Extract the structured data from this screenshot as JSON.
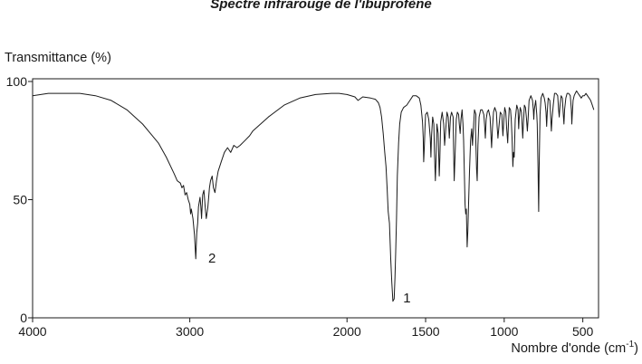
{
  "chart_data": {
    "type": "line",
    "title": "Spectre infrarouge de l'ibuprofène",
    "ylabel": "Transmittance (%)",
    "xlabel_text": "Nombre d'onde (cm",
    "xlabel_sup": "-1",
    "xlabel_close": ")",
    "xlim": [
      4000,
      400
    ],
    "ylim": [
      0,
      100
    ],
    "x_axis_reversed": true,
    "grid": false,
    "x_ticks": [
      4000,
      3000,
      2000,
      1500,
      1000,
      500
    ],
    "x_tick_labels": [
      "4000",
      "3000",
      "2000",
      "1500",
      "1000",
      "500"
    ],
    "y_ticks": [
      0,
      50,
      100
    ],
    "y_tick_labels": [
      "0",
      "50",
      "100"
    ],
    "annotations": [
      {
        "text": "1",
        "x": 1700,
        "y": 8
      },
      {
        "text": "2",
        "x": 2940,
        "y": 25
      }
    ],
    "series": [
      {
        "color": "#1a1a1a",
        "points": [
          [
            4000,
            94
          ],
          [
            3900,
            95
          ],
          [
            3800,
            95
          ],
          [
            3700,
            95
          ],
          [
            3600,
            94
          ],
          [
            3500,
            92
          ],
          [
            3400,
            88
          ],
          [
            3300,
            82
          ],
          [
            3250,
            78
          ],
          [
            3200,
            74
          ],
          [
            3150,
            68
          ],
          [
            3100,
            61
          ],
          [
            3080,
            58
          ],
          [
            3060,
            57
          ],
          [
            3050,
            55
          ],
          [
            3040,
            56
          ],
          [
            3030,
            52
          ],
          [
            3020,
            53
          ],
          [
            3010,
            50
          ],
          [
            3000,
            48
          ],
          [
            2995,
            44
          ],
          [
            2990,
            46
          ],
          [
            2980,
            42
          ],
          [
            2970,
            35
          ],
          [
            2962,
            25
          ],
          [
            2956,
            36
          ],
          [
            2950,
            40
          ],
          [
            2945,
            47
          ],
          [
            2935,
            51
          ],
          [
            2930,
            47
          ],
          [
            2925,
            42
          ],
          [
            2918,
            52
          ],
          [
            2910,
            54
          ],
          [
            2900,
            45
          ],
          [
            2895,
            42
          ],
          [
            2885,
            47
          ],
          [
            2875,
            55
          ],
          [
            2868,
            58
          ],
          [
            2858,
            60
          ],
          [
            2850,
            55
          ],
          [
            2840,
            53
          ],
          [
            2830,
            58
          ],
          [
            2820,
            62
          ],
          [
            2800,
            66
          ],
          [
            2780,
            70
          ],
          [
            2760,
            72
          ],
          [
            2740,
            70
          ],
          [
            2720,
            73
          ],
          [
            2700,
            72
          ],
          [
            2680,
            73
          ],
          [
            2650,
            75
          ],
          [
            2620,
            77
          ],
          [
            2600,
            79
          ],
          [
            2500,
            85
          ],
          [
            2400,
            90
          ],
          [
            2300,
            93
          ],
          [
            2200,
            94.5
          ],
          [
            2100,
            95
          ],
          [
            2050,
            95
          ],
          [
            2000,
            94.5
          ],
          [
            1950,
            93.5
          ],
          [
            1930,
            92
          ],
          [
            1900,
            93.5
          ],
          [
            1850,
            93
          ],
          [
            1820,
            92.5
          ],
          [
            1800,
            91
          ],
          [
            1790,
            89
          ],
          [
            1780,
            85
          ],
          [
            1770,
            78
          ],
          [
            1760,
            70
          ],
          [
            1752,
            64
          ],
          [
            1745,
            55
          ],
          [
            1738,
            45
          ],
          [
            1730,
            40
          ],
          [
            1722,
            25
          ],
          [
            1715,
            15
          ],
          [
            1708,
            7
          ],
          [
            1700,
            8
          ],
          [
            1695,
            17
          ],
          [
            1690,
            28
          ],
          [
            1685,
            42
          ],
          [
            1680,
            60
          ],
          [
            1672,
            74
          ],
          [
            1665,
            82
          ],
          [
            1655,
            87
          ],
          [
            1640,
            89
          ],
          [
            1620,
            90
          ],
          [
            1600,
            92
          ],
          [
            1580,
            94
          ],
          [
            1560,
            94
          ],
          [
            1540,
            93
          ],
          [
            1530,
            90
          ],
          [
            1520,
            83
          ],
          [
            1515,
            76
          ],
          [
            1512,
            66
          ],
          [
            1508,
            72
          ],
          [
            1504,
            80
          ],
          [
            1500,
            86
          ],
          [
            1490,
            87
          ],
          [
            1480,
            84
          ],
          [
            1470,
            76
          ],
          [
            1466,
            68
          ],
          [
            1462,
            77
          ],
          [
            1455,
            85
          ],
          [
            1448,
            82
          ],
          [
            1444,
            70
          ],
          [
            1438,
            58
          ],
          [
            1432,
            70
          ],
          [
            1428,
            82
          ],
          [
            1420,
            78
          ],
          [
            1413,
            60
          ],
          [
            1409,
            68
          ],
          [
            1404,
            83
          ],
          [
            1395,
            87
          ],
          [
            1385,
            82
          ],
          [
            1379,
            73
          ],
          [
            1372,
            80
          ],
          [
            1364,
            87
          ],
          [
            1356,
            85
          ],
          [
            1349,
            76
          ],
          [
            1342,
            85
          ],
          [
            1335,
            87
          ],
          [
            1325,
            85
          ],
          [
            1322,
            72
          ],
          [
            1318,
            58
          ],
          [
            1313,
            68
          ],
          [
            1305,
            84
          ],
          [
            1298,
            87
          ],
          [
            1290,
            86
          ],
          [
            1286,
            82
          ],
          [
            1280,
            78
          ],
          [
            1275,
            84
          ],
          [
            1268,
            88
          ],
          [
            1262,
            82
          ],
          [
            1258,
            75
          ],
          [
            1253,
            60
          ],
          [
            1249,
            48
          ],
          [
            1245,
            44
          ],
          [
            1241,
            46
          ],
          [
            1236,
            30
          ],
          [
            1231,
            37
          ],
          [
            1226,
            50
          ],
          [
            1221,
            62
          ],
          [
            1214,
            75
          ],
          [
            1207,
            80
          ],
          [
            1202,
            73
          ],
          [
            1196,
            80
          ],
          [
            1189,
            88
          ],
          [
            1180,
            86
          ],
          [
            1183,
            80
          ],
          [
            1176,
            63
          ],
          [
            1172,
            58
          ],
          [
            1167,
            73
          ],
          [
            1160,
            85
          ],
          [
            1150,
            88
          ],
          [
            1140,
            88
          ],
          [
            1130,
            86
          ],
          [
            1125,
            82
          ],
          [
            1120,
            76
          ],
          [
            1115,
            84
          ],
          [
            1108,
            87
          ],
          [
            1100,
            88
          ],
          [
            1090,
            85
          ],
          [
            1085,
            78
          ],
          [
            1080,
            72
          ],
          [
            1075,
            80
          ],
          [
            1068,
            87
          ],
          [
            1060,
            89
          ],
          [
            1050,
            87
          ],
          [
            1045,
            81
          ],
          [
            1040,
            76
          ],
          [
            1035,
            80
          ],
          [
            1025,
            87
          ],
          [
            1015,
            86
          ],
          [
            1012,
            81
          ],
          [
            1008,
            77
          ],
          [
            1003,
            83
          ],
          [
            997,
            89
          ],
          [
            990,
            87
          ],
          [
            985,
            81
          ],
          [
            978,
            74
          ],
          [
            973,
            82
          ],
          [
            968,
            89
          ],
          [
            960,
            88
          ],
          [
            955,
            84
          ],
          [
            950,
            76
          ],
          [
            945,
            64
          ],
          [
            941,
            70
          ],
          [
            936,
            68
          ],
          [
            930,
            84
          ],
          [
            920,
            90
          ],
          [
            912,
            88
          ],
          [
            908,
            80
          ],
          [
            905,
            84
          ],
          [
            898,
            89
          ],
          [
            890,
            87
          ],
          [
            882,
            76
          ],
          [
            878,
            82
          ],
          [
            872,
            90
          ],
          [
            865,
            89
          ],
          [
            858,
            84
          ],
          [
            853,
            79
          ],
          [
            848,
            84
          ],
          [
            842,
            92
          ],
          [
            830,
            94
          ],
          [
            820,
            92
          ],
          [
            815,
            88
          ],
          [
            812,
            84
          ],
          [
            809,
            88
          ],
          [
            800,
            92
          ],
          [
            793,
            86
          ],
          [
            790,
            82
          ],
          [
            785,
            63
          ],
          [
            781,
            45
          ],
          [
            778,
            63
          ],
          [
            772,
            86
          ],
          [
            766,
            93
          ],
          [
            755,
            95
          ],
          [
            745,
            93
          ],
          [
            740,
            91
          ],
          [
            734,
            87
          ],
          [
            730,
            81
          ],
          [
            726,
            87
          ],
          [
            720,
            93
          ],
          [
            710,
            92
          ],
          [
            706,
            87
          ],
          [
            700,
            79
          ],
          [
            696,
            84
          ],
          [
            688,
            90
          ],
          [
            680,
            95
          ],
          [
            670,
            95
          ],
          [
            660,
            94
          ],
          [
            654,
            88
          ],
          [
            650,
            85
          ],
          [
            645,
            90
          ],
          [
            638,
            94
          ],
          [
            630,
            93
          ],
          [
            625,
            87
          ],
          [
            620,
            82
          ],
          [
            616,
            88
          ],
          [
            608,
            93
          ],
          [
            600,
            95
          ],
          [
            590,
            95
          ],
          [
            580,
            94
          ],
          [
            576,
            91
          ],
          [
            573,
            88
          ],
          [
            570,
            82
          ],
          [
            567,
            86
          ],
          [
            562,
            92
          ],
          [
            555,
            94
          ],
          [
            548,
            95
          ],
          [
            540,
            96
          ],
          [
            530,
            95
          ],
          [
            520,
            94
          ],
          [
            510,
            93
          ],
          [
            500,
            94
          ],
          [
            490,
            94
          ],
          [
            480,
            95
          ],
          [
            470,
            94
          ],
          [
            460,
            93
          ],
          [
            450,
            92
          ],
          [
            440,
            90
          ],
          [
            430,
            88
          ]
        ]
      }
    ]
  }
}
